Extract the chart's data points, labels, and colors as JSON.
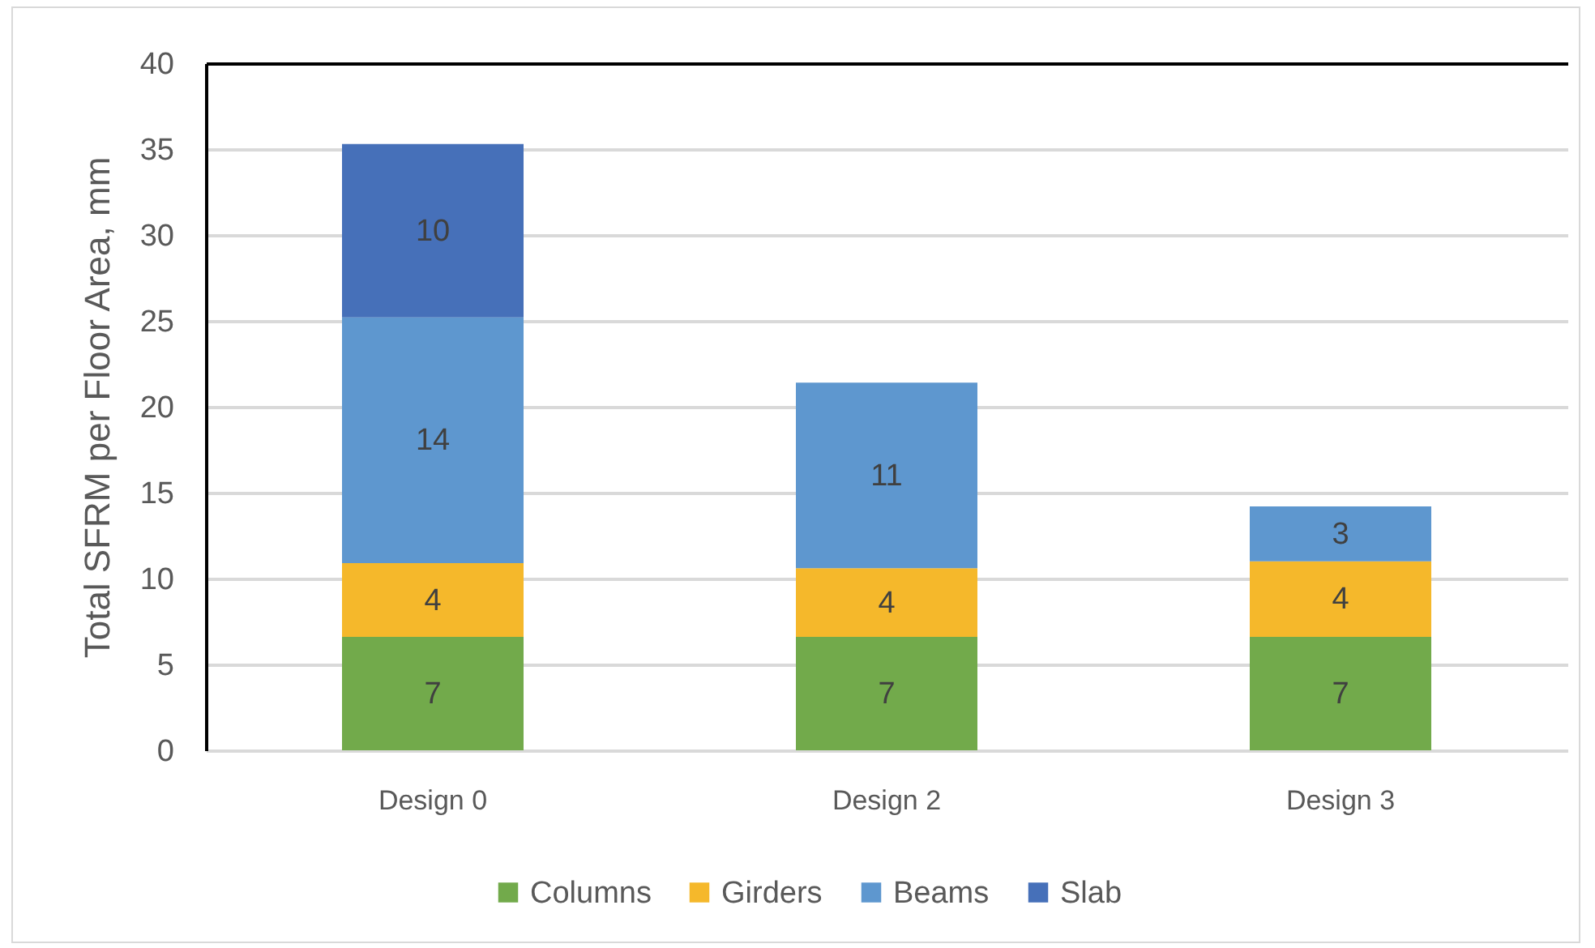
{
  "chart_data": {
    "type": "bar",
    "stacked": true,
    "ylabel": "Total SFRM per Floor Area, mm",
    "categories": [
      "Design 0",
      "Design 2",
      "Design 3"
    ],
    "series": [
      {
        "name": "Columns",
        "color": "#72aa4b",
        "values": [
          6.6,
          6.6,
          6.6
        ],
        "value_labels": [
          "7",
          "7",
          "7"
        ]
      },
      {
        "name": "Girders",
        "color": "#f5b82b",
        "values": [
          4.3,
          4.0,
          4.4
        ],
        "value_labels": [
          "4",
          "4",
          "4"
        ]
      },
      {
        "name": "Beams",
        "color": "#5e97cf",
        "values": [
          14.3,
          10.8,
          3.2
        ],
        "value_labels": [
          "14",
          "11",
          "3"
        ]
      },
      {
        "name": "Slab",
        "color": "#4670b9",
        "values": [
          10.1,
          null,
          null
        ],
        "value_labels": [
          "10",
          null,
          null
        ]
      }
    ],
    "ylim": [
      0,
      40
    ],
    "yticks": [
      0,
      5,
      10,
      15,
      20,
      25,
      30,
      35,
      40
    ],
    "grid": "y",
    "legend": "bottom"
  }
}
